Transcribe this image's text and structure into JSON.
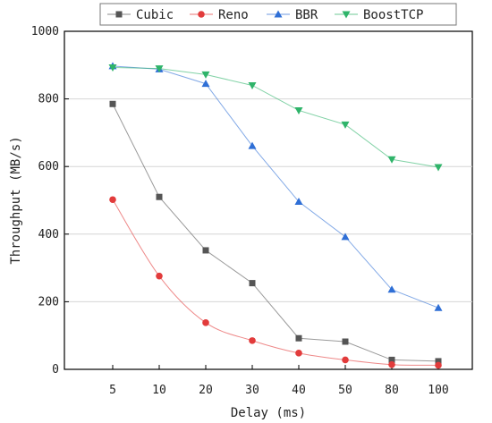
{
  "chart_data": {
    "type": "line",
    "xlabel": "Delay (ms)",
    "ylabel": "Throughput (MB/s)",
    "categories": [
      "5",
      "10",
      "20",
      "30",
      "40",
      "50",
      "80",
      "100"
    ],
    "ylim": [
      0,
      1000
    ],
    "yticks": [
      "0",
      "200",
      "400",
      "600",
      "800",
      "1000"
    ],
    "grid": true,
    "legend_position": "top",
    "series": [
      {
        "name": "Cubic",
        "color": "#555555",
        "marker": "square",
        "values": [
          785,
          510,
          352,
          255,
          92,
          82,
          28,
          24
        ]
      },
      {
        "name": "Reno",
        "color": "#e23b3b",
        "marker": "circle",
        "values": [
          502,
          276,
          138,
          85,
          48,
          28,
          14,
          12
        ]
      },
      {
        "name": "BBR",
        "color": "#2f6fd6",
        "marker": "triangle-up",
        "values": [
          897,
          888,
          845,
          661,
          496,
          392,
          236,
          182
        ]
      },
      {
        "name": "BoostTCP",
        "color": "#2fb46a",
        "marker": "triangle-down",
        "values": [
          893,
          890,
          872,
          840,
          766,
          724,
          621,
          598
        ]
      }
    ]
  }
}
